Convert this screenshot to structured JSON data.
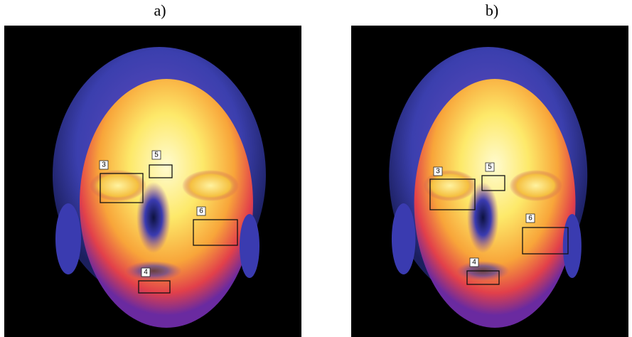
{
  "panels": [
    {
      "label": "a)",
      "regions": [
        {
          "label": "3"
        },
        {
          "label": "5"
        },
        {
          "label": "6"
        },
        {
          "label": "4"
        }
      ]
    },
    {
      "label": "b)",
      "regions": [
        {
          "label": "3"
        },
        {
          "label": "5"
        },
        {
          "label": "6"
        },
        {
          "label": "4"
        }
      ]
    }
  ]
}
